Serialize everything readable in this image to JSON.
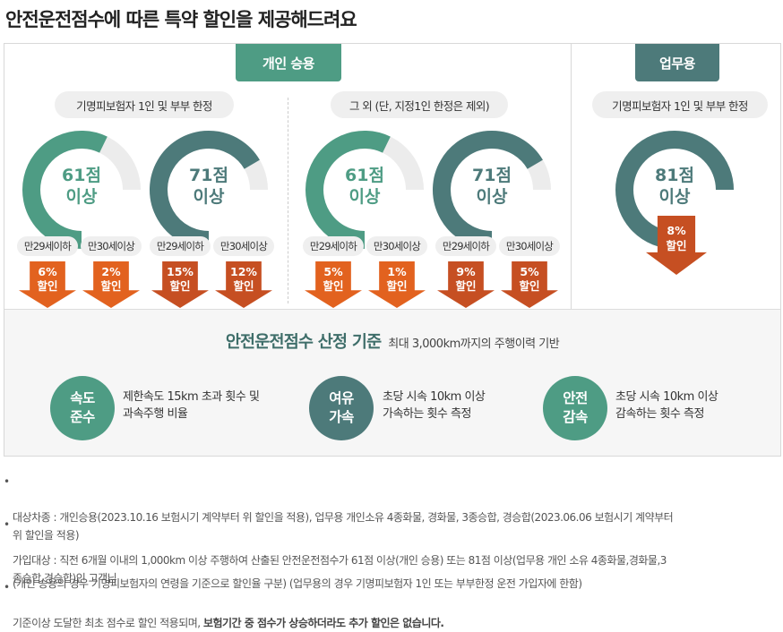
{
  "page_title": "안전운전점수에 따른 특약 할인을 제공해드려요",
  "colors": {
    "green": "#4e9c84",
    "teal": "#4d7a7a",
    "track": "#ececec",
    "orange": "#e2621f",
    "rust": "#c64f22",
    "gradient_green": "#5fae94"
  },
  "personal": {
    "tab_label": "개인 승용",
    "group1": {
      "pill": "기명피보험자 1인 및 부부 한정",
      "gauges": [
        {
          "score": "61점",
          "suffix": "이상",
          "level": 0.61,
          "color": "green"
        },
        {
          "score": "71점",
          "suffix": "이상",
          "level": 0.71,
          "color": "teal"
        }
      ],
      "discounts": [
        {
          "age": "만29세이하",
          "pct": "6%",
          "word": "할인"
        },
        {
          "age": "만30세이상",
          "pct": "2%",
          "word": "할인"
        },
        {
          "age": "만29세이하",
          "pct": "15%",
          "word": "할인"
        },
        {
          "age": "만30세이상",
          "pct": "12%",
          "word": "할인"
        }
      ]
    },
    "group2": {
      "pill": "그 외 (단, 지정1인 한정은 제외)",
      "gauges": [
        {
          "score": "61점",
          "suffix": "이상",
          "level": 0.61,
          "color": "green"
        },
        {
          "score": "71점",
          "suffix": "이상",
          "level": 0.71,
          "color": "teal"
        }
      ],
      "discounts": [
        {
          "age": "만29세이하",
          "pct": "5%",
          "word": "할인"
        },
        {
          "age": "만30세이상",
          "pct": "1%",
          "word": "할인"
        },
        {
          "age": "만29세이하",
          "pct": "9%",
          "word": "할인"
        },
        {
          "age": "만30세이상",
          "pct": "5%",
          "word": "할인"
        }
      ]
    }
  },
  "business": {
    "tab_label": "업무용",
    "pill": "기명피보험자 1인 및 부부 한정",
    "gauge": {
      "score": "81점",
      "suffix": "이상",
      "level": 0.81,
      "color": "teal"
    },
    "discount": {
      "pct": "8%",
      "word": "할인"
    }
  },
  "criteria": {
    "title": "안전운전점수 산정 기준",
    "subtitle": "최대 3,000km까지의 주행이력 기반",
    "items": [
      {
        "label": "속도\n준수",
        "desc": "제한속도 15km 초과 횟수 및\n과속주행 비율",
        "color": "green"
      },
      {
        "label": "여유\n가속",
        "desc": "초당 시속 10km 이상\n가속하는 횟수 측정",
        "color": "teal"
      },
      {
        "label": "안전\n감속",
        "desc": "초당 시속 10km 이상\n감속하는 횟수 측정",
        "color": "green"
      }
    ]
  },
  "notes": {
    "n1": "대상차종 : 개인승용(2023.10.16 보험시기 계약부터 위 할인을 적용), 업무용 개인소유 4종화물, 경화물, 3종승합, 경승합(2023.06.06 보험시기 계약부터\n위 할인을 적용)",
    "n2": "가입대상 : 직전 6개월 이내의 1,000km 이상 주행하여 산출된 안전운전점수가 61점 이상(개인 승용) 또는 81점 이상(업무용 개인 소유 4종화물,경화물,3\n종승합,경승합)인 고객님",
    "n2b": "(개인 승용의 경우 기명피보험자의 연령을 기준으로 할인율 구분) (업무용의 경우 기명피보험자 1인 또는 부부한정 운전 가입자에 한함)",
    "n3_a": "기준이상 도달한 최초 점수로 할인 적용되며, ",
    "n3_b": "보험기간 중 점수가 상승하더라도 추가 할인은 없습니다.",
    "bullet": "•"
  }
}
